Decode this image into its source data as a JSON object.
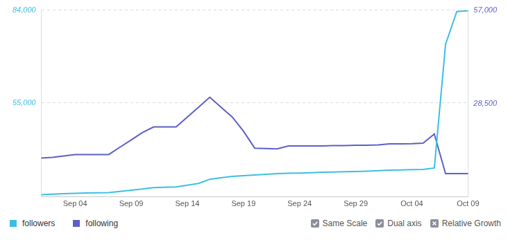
{
  "chart_data": {
    "type": "line",
    "categories": [
      null,
      null,
      null,
      "Sep 04",
      null,
      null,
      null,
      null,
      "Sep 09",
      null,
      null,
      null,
      null,
      "Sep 14",
      null,
      null,
      null,
      null,
      "Sep 19",
      null,
      null,
      null,
      null,
      "Sep 24",
      null,
      null,
      null,
      null,
      "Sep 29",
      null,
      null,
      null,
      null,
      "Oct 04",
      null,
      null,
      null,
      null,
      "Oct 09"
    ],
    "series": [
      {
        "name": "followers",
        "color": "#3bbfe0",
        "values": [
          26220,
          26400,
          26550,
          26660,
          26730,
          26800,
          26880,
          27250,
          27620,
          27980,
          28420,
          28530,
          28640,
          29200,
          29730,
          31050,
          31500,
          31930,
          32150,
          32370,
          32590,
          32810,
          32900,
          33000,
          33100,
          33250,
          33320,
          33400,
          33470,
          33600,
          33750,
          33910,
          33980,
          34050,
          34130,
          34570,
          73240,
          83560,
          83780
        ]
      },
      {
        "name": "following",
        "color": "#5b5fc7",
        "axis": "y2",
        "values": [
          11870,
          12100,
          12500,
          12950,
          12950,
          12950,
          12950,
          15200,
          17400,
          19650,
          21370,
          21370,
          21370,
          24400,
          27400,
          30440,
          27400,
          24400,
          20080,
          14900,
          14800,
          14680,
          15550,
          15550,
          15550,
          15550,
          15650,
          15700,
          15760,
          15760,
          15900,
          16190,
          16200,
          16250,
          16400,
          19220,
          7130,
          7150,
          7150
        ]
      }
    ],
    "ylim": [
      25500,
      84000
    ],
    "yticks": [
      {
        "value": 55000,
        "label": "55,000"
      },
      {
        "value": 84000,
        "label": "84,000"
      }
    ],
    "y2lim": [
      0,
      57000
    ],
    "y2ticks": [
      {
        "value": 28500,
        "label": "28,500"
      },
      {
        "value": 57000,
        "label": "57,000"
      }
    ],
    "grid": true,
    "legend": "bottom"
  },
  "controls": [
    {
      "label": "Same Scale",
      "checked": true
    },
    {
      "label": "Dual axis",
      "checked": true
    },
    {
      "label": "Relative Growth",
      "checked": false
    }
  ]
}
